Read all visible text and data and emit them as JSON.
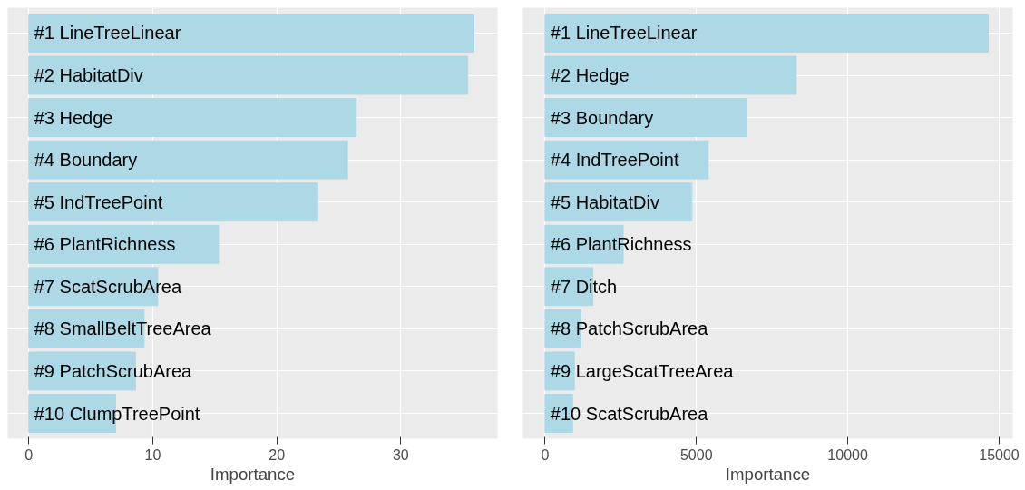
{
  "chart_data": [
    {
      "type": "bar",
      "orientation": "horizontal",
      "xlabel": "Importance",
      "categories": [
        "#1 LineTreeLinear",
        "#2 HabitatDiv",
        "#3 Hedge",
        "#4 Boundary",
        "#5 IndTreePoint",
        "#6 PlantRichness",
        "#7 ScatScrubArea",
        "#8 SmallBeltTreeArea",
        "#9 PatchScrubArea",
        "#10 ClumpTreePoint"
      ],
      "values": [
        35.9,
        35.4,
        26.4,
        25.7,
        23.3,
        15.3,
        10.4,
        9.3,
        8.6,
        7.0
      ],
      "color": "#add8e6",
      "xlim": [
        -1.7,
        37.8
      ],
      "xticks": [
        0,
        10,
        20,
        30
      ],
      "grid": true
    },
    {
      "type": "bar",
      "orientation": "horizontal",
      "xlabel": "Importance",
      "categories": [
        "#1 LineTreeLinear",
        "#2 Hedge",
        "#3 Boundary",
        "#4 IndTreePoint",
        "#5 HabitatDiv",
        "#6 PlantRichness",
        "#7 Ditch",
        "#8 PatchScrubArea",
        "#9 LargeScatTreeArea",
        "#10 ScatScrubArea"
      ],
      "values": [
        14640,
        8300,
        6670,
        5390,
        4850,
        2580,
        1580,
        1180,
        970,
        910
      ],
      "color": "#add8e6",
      "xlim": [
        -730,
        15450
      ],
      "xticks": [
        0,
        5000,
        10000,
        15000
      ],
      "grid": true
    }
  ]
}
